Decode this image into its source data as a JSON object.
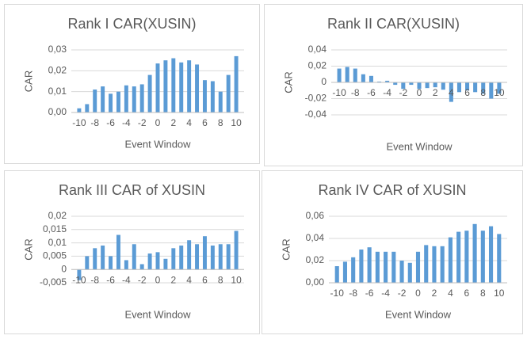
{
  "chart_data": [
    {
      "type": "bar",
      "title": "Rank I CAR(XUSIN)",
      "x_label": "Event Window",
      "y_label": "CAR",
      "color": "#5b9bd5",
      "grid": true,
      "x": [
        -10,
        -9,
        -8,
        -7,
        -6,
        -5,
        -4,
        -3,
        -2,
        -1,
        0,
        1,
        2,
        3,
        4,
        5,
        6,
        7,
        8,
        9,
        10
      ],
      "values": [
        0.002,
        0.004,
        0.011,
        0.0125,
        0.009,
        0.01,
        0.013,
        0.0125,
        0.0135,
        0.018,
        0.0235,
        0.025,
        0.026,
        0.024,
        0.025,
        0.023,
        0.0155,
        0.015,
        0.01,
        0.018,
        0.027
      ],
      "xlim": [
        -11,
        11
      ],
      "xticks": [
        -10,
        -8,
        -6,
        -4,
        -2,
        0,
        2,
        4,
        6,
        8,
        10
      ],
      "ylim": [
        0,
        0.03
      ],
      "yticks": [
        {
          "value": 0,
          "label": "0,00"
        },
        {
          "value": 0.01,
          "label": "0,01"
        },
        {
          "value": 0.02,
          "label": "0,02"
        },
        {
          "value": 0.03,
          "label": "0,03"
        }
      ]
    },
    {
      "type": "bar",
      "title": "Rank II CAR(XUSIN)",
      "x_label": "Event Window",
      "y_label": "CAR",
      "color": "#5b9bd5",
      "grid": true,
      "x": [
        -10,
        -9,
        -8,
        -7,
        -6,
        -5,
        -4,
        -3,
        -2,
        -1,
        0,
        1,
        2,
        3,
        4,
        5,
        6,
        7,
        8,
        9,
        10
      ],
      "values": [
        0.017,
        0.019,
        0.017,
        0.01,
        0.008,
        0.001,
        0.002,
        -0.003,
        -0.008,
        -0.003,
        -0.008,
        -0.007,
        -0.006,
        -0.009,
        -0.024,
        -0.012,
        -0.01,
        -0.012,
        -0.014,
        -0.02,
        -0.014
      ],
      "xlim": [
        -11,
        11
      ],
      "xticks": [
        -10,
        -8,
        -6,
        -4,
        -2,
        0,
        2,
        4,
        6,
        8,
        10
      ],
      "ylim": [
        -0.04,
        0.04
      ],
      "yticks": [
        {
          "value": -0.04,
          "label": "-0,04"
        },
        {
          "value": -0.02,
          "label": "-0,02"
        },
        0,
        {
          "value": 0.02,
          "label": "0,02"
        },
        {
          "value": 0.04,
          "label": "0,04"
        }
      ]
    },
    {
      "type": "bar",
      "title": "Rank III CAR of XUSIN",
      "x_label": "Event Window",
      "y_label": "CAR",
      "color": "#5b9bd5",
      "grid": true,
      "x": [
        -10,
        -9,
        -8,
        -7,
        -6,
        -5,
        -4,
        -3,
        -2,
        -1,
        0,
        1,
        2,
        3,
        4,
        5,
        6,
        7,
        8,
        9,
        10
      ],
      "values": [
        -0.004,
        0.005,
        0.008,
        0.009,
        0.005,
        0.013,
        0.0035,
        0.0095,
        0.002,
        0.006,
        0.0065,
        0.004,
        0.008,
        0.009,
        0.011,
        0.0095,
        0.0125,
        0.009,
        0.0095,
        0.0095,
        0.0145
      ],
      "xlim": [
        -11,
        11
      ],
      "xticks": [
        -10,
        -8,
        -6,
        -4,
        -2,
        0,
        2,
        4,
        6,
        8,
        10
      ],
      "ylim": [
        -0.005,
        0.02
      ],
      "yticks": [
        {
          "value": -0.005,
          "label": "-0,005"
        },
        0,
        {
          "value": 0.005,
          "label": "0,005"
        },
        {
          "value": 0.01,
          "label": "0,01"
        },
        {
          "value": 0.015,
          "label": "0,015"
        },
        {
          "value": 0.02,
          "label": "0,02"
        }
      ]
    },
    {
      "type": "bar",
      "title": "Rank IV CAR of XUSIN",
      "x_label": "Event Window",
      "y_label": "CAR",
      "color": "#5b9bd5",
      "grid": true,
      "x": [
        -10,
        -9,
        -8,
        -7,
        -6,
        -5,
        -4,
        -3,
        -2,
        -1,
        0,
        1,
        2,
        3,
        4,
        5,
        6,
        7,
        8,
        9,
        10
      ],
      "values": [
        0.015,
        0.019,
        0.023,
        0.03,
        0.032,
        0.028,
        0.028,
        0.028,
        0.02,
        0.018,
        0.028,
        0.034,
        0.033,
        0.033,
        0.041,
        0.046,
        0.047,
        0.053,
        0.047,
        0.051,
        0.044
      ],
      "xlim": [
        -11,
        11
      ],
      "xticks": [
        -10,
        -8,
        -6,
        -4,
        -2,
        0,
        2,
        4,
        6,
        8,
        10
      ],
      "ylim": [
        0,
        0.06
      ],
      "yticks": [
        {
          "value": 0,
          "label": "0,00"
        },
        {
          "value": 0.02,
          "label": "0,02"
        },
        {
          "value": 0.04,
          "label": "0,04"
        },
        {
          "value": 0.06,
          "label": "0,06"
        }
      ]
    }
  ]
}
